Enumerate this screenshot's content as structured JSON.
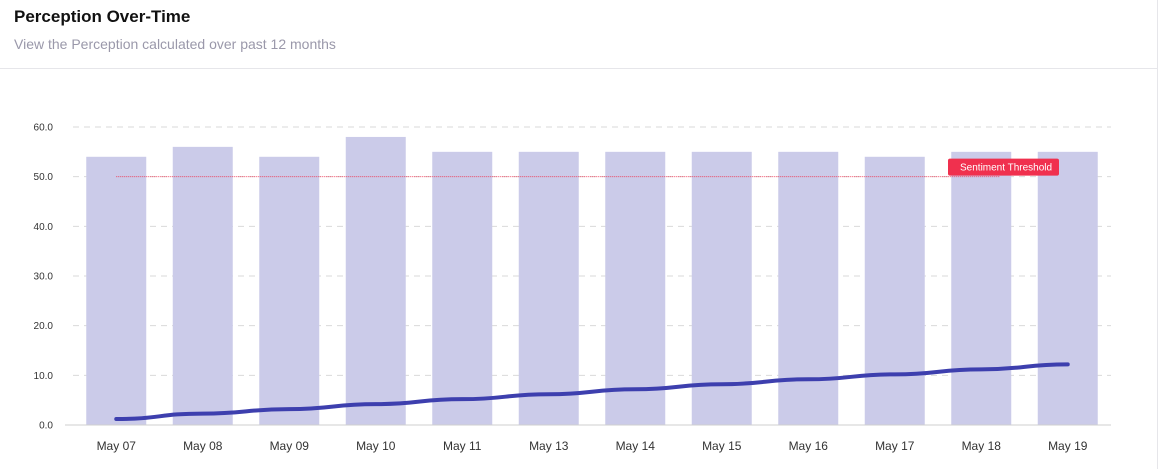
{
  "header": {
    "title": "Perception Over-Time",
    "subtitle": "View the Perception calculated over past 12 months"
  },
  "colors": {
    "bar": "#cbcbe9",
    "line": "#3d3fae",
    "threshold": "#f0304e",
    "grid": "#dadada"
  },
  "chart_data": {
    "type": "bar",
    "categories": [
      "May 07",
      "May 08",
      "May 09",
      "May 10",
      "May 11",
      "May 13",
      "May 14",
      "May 15",
      "May 16",
      "May 17",
      "May 18",
      "May 19"
    ],
    "series": [
      {
        "type": "bar",
        "values": [
          54,
          56,
          54,
          58,
          55,
          55,
          55,
          55,
          55,
          54,
          55,
          55
        ]
      },
      {
        "type": "line",
        "values": [
          1.2,
          2.3,
          3.2,
          4.2,
          5.2,
          6.2,
          7.2,
          8.2,
          9.2,
          10.2,
          11.2,
          12.2
        ]
      }
    ],
    "ylim": [
      0,
      60
    ],
    "yticks": [
      "0.0",
      "10.0",
      "20.0",
      "30.0",
      "40.0",
      "50.0",
      "60.0"
    ],
    "grid": true,
    "threshold": {
      "value": 50,
      "label": "Sentiment Threshold"
    }
  }
}
